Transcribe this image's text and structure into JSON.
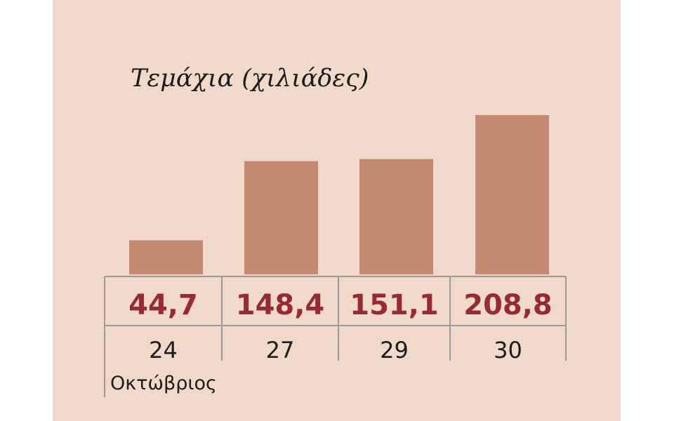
{
  "chart_data": {
    "type": "bar",
    "title": "Τεμάχια (χιλιάδες)",
    "categories": [
      "24",
      "27",
      "29",
      "30"
    ],
    "values": [
      44.7,
      148.4,
      151.1,
      208.8
    ],
    "value_labels": [
      "44,7",
      "148,4",
      "151,1",
      "208,8"
    ],
    "month_label": "Οκτώβριος",
    "ylim": [
      0,
      208.8
    ],
    "grid": false,
    "colors": {
      "panel": "#f0d9cb",
      "bar": "#c38a71",
      "value_text": "#962b33",
      "lines": "#9c9a98"
    }
  }
}
